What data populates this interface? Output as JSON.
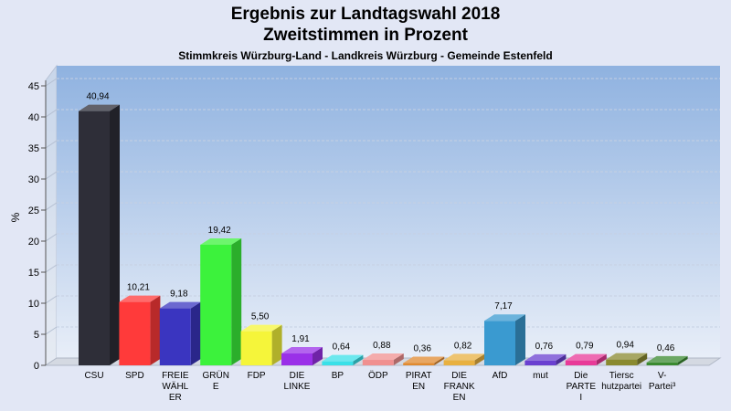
{
  "chart_data": {
    "type": "bar",
    "title_line1": "Ergebnis zur Landtagswahl 2018",
    "title_line2": "Zweitstimmen in Prozent",
    "subtitle": "Stimmkreis Würzburg-Land - Landkreis Würzburg - Gemeinde Estenfeld",
    "ylabel": "%",
    "ylim": [
      0,
      47
    ],
    "yticks": [
      0,
      5,
      10,
      15,
      20,
      25,
      30,
      35,
      40,
      45
    ],
    "grid": true,
    "categories": [
      [
        "CSU"
      ],
      [
        "SPD"
      ],
      [
        "FREIE",
        "WÄHL",
        "ER"
      ],
      [
        "GRÜN",
        "E"
      ],
      [
        "FDP"
      ],
      [
        "DIE",
        "LINKE"
      ],
      [
        "BP"
      ],
      [
        "ÖDP"
      ],
      [
        "PIRAT",
        "EN"
      ],
      [
        "DIE",
        "FRANK",
        "EN"
      ],
      [
        "AfD"
      ],
      [
        "mut"
      ],
      [
        "Die",
        "PARTE",
        "I"
      ],
      [
        "Tiersc",
        "hutzpartei"
      ],
      [
        "V-",
        "Partei³"
      ]
    ],
    "values": [
      40.94,
      10.21,
      9.18,
      19.42,
      5.5,
      1.91,
      0.64,
      0.88,
      0.36,
      0.82,
      7.17,
      0.76,
      0.79,
      0.94,
      0.46
    ],
    "value_labels": [
      "40,94",
      "10,21",
      "9,18",
      "19,42",
      "5,50",
      "1,91",
      "0,64",
      "0,88",
      "0,36",
      "0,82",
      "7,17",
      "0,76",
      "0,79",
      "0,94",
      "0,46"
    ],
    "colors": [
      "#2e2e38",
      "#ff3a3a",
      "#3a35c0",
      "#3cf23c",
      "#f5f53a",
      "#9a30e8",
      "#3ae0e8",
      "#f09090",
      "#e08a30",
      "#e8b040",
      "#3a9ad0",
      "#6a40d0",
      "#e83a98",
      "#8a8a30",
      "#3a8a30"
    ]
  }
}
